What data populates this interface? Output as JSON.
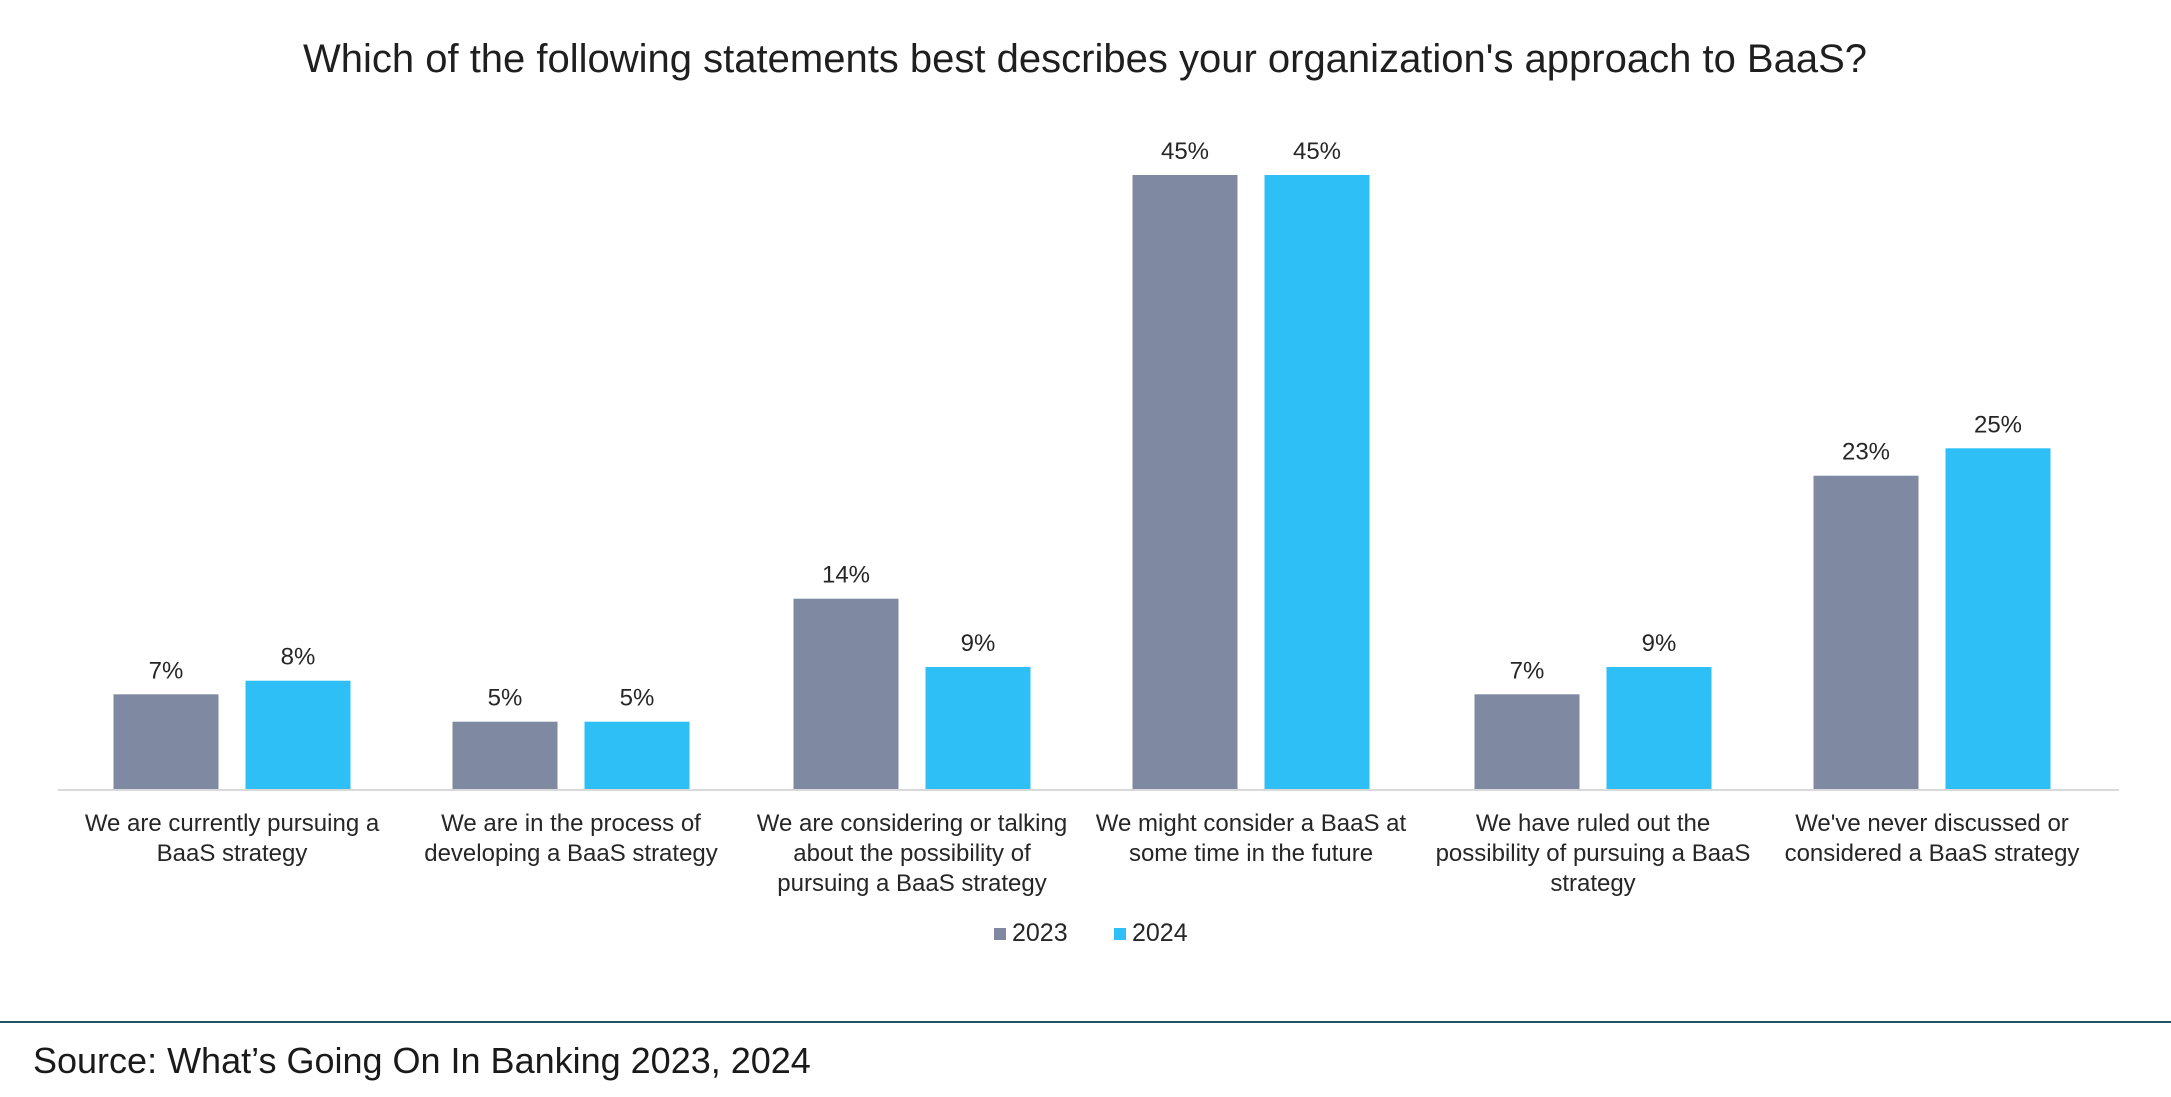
{
  "chart_data": {
    "type": "bar",
    "title": "Which of the following statements best describes your organization's approach to BaaS?",
    "categories": [
      [
        "We are currently pursuing a",
        "BaaS strategy"
      ],
      [
        "We are in the process of",
        "developing a BaaS strategy"
      ],
      [
        "We are considering or talking",
        "about the possibility of",
        "pursuing a BaaS strategy"
      ],
      [
        "We might consider a BaaS at",
        "some time in the future"
      ],
      [
        "We have ruled out the",
        "possibility of pursuing a BaaS",
        "strategy"
      ],
      [
        "We've never discussed or",
        "considered a BaaS strategy"
      ]
    ],
    "series": [
      {
        "name": "2023",
        "color": "#7f8aa2",
        "values": [
          7,
          5,
          14,
          45,
          7,
          23
        ],
        "labels": [
          "7%",
          "5%",
          "14%",
          "45%",
          "7%",
          "23%"
        ]
      },
      {
        "name": "2024",
        "color": "#2dbff5",
        "values": [
          8,
          5,
          9,
          45,
          9,
          25
        ],
        "labels": [
          "8%",
          "5%",
          "9%",
          "45%",
          "9%",
          "25%"
        ]
      }
    ],
    "unit": "%",
    "xlabel": "",
    "ylabel": "",
    "ylim": [
      0,
      45
    ],
    "grid": false,
    "legend_position": "bottom"
  },
  "footer": {
    "source": "Source: What’s Going On In Banking 2023, 2024"
  }
}
